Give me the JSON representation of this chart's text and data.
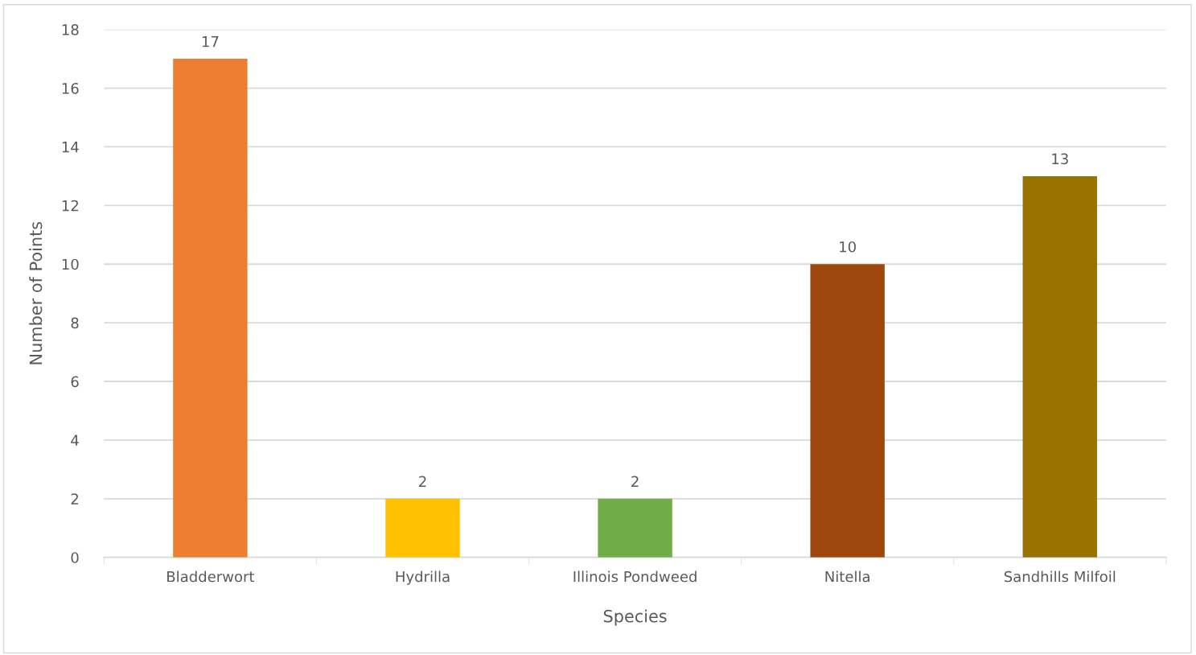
{
  "chart_data": {
    "type": "bar",
    "xlabel": "Species",
    "ylabel": "Number of Points",
    "categories": [
      "Bladderwort",
      "Hydrilla",
      "Illinois Pondweed",
      "Nitella",
      "Sandhills Milfoil"
    ],
    "values": [
      17,
      2,
      2,
      10,
      13
    ],
    "colors": [
      "#ed7d31",
      "#ffc000",
      "#70ad47",
      "#9e480e",
      "#997300"
    ],
    "ylim": [
      0,
      18
    ],
    "yticks": [
      0,
      2,
      4,
      6,
      8,
      10,
      12,
      14,
      16,
      18
    ],
    "grid": "y",
    "data_labels": true,
    "legend": false
  }
}
